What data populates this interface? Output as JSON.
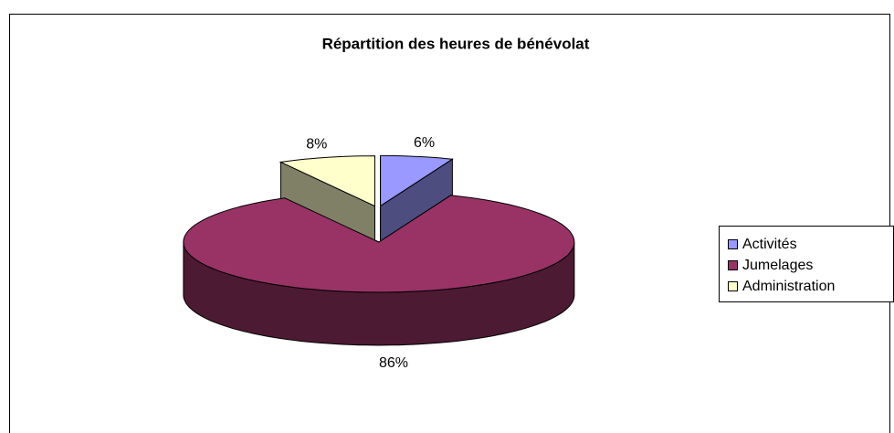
{
  "chart_data": {
    "type": "pie",
    "title": "Répartition des heures de bénévolat",
    "categories": [
      "Activités",
      "Jumelages",
      "Administration"
    ],
    "values": [
      6,
      86,
      8
    ],
    "value_labels": [
      "6%",
      "86%",
      "8%"
    ],
    "colors": [
      "#9999ff",
      "#993366",
      "#ffffcc"
    ],
    "legend": "right"
  }
}
